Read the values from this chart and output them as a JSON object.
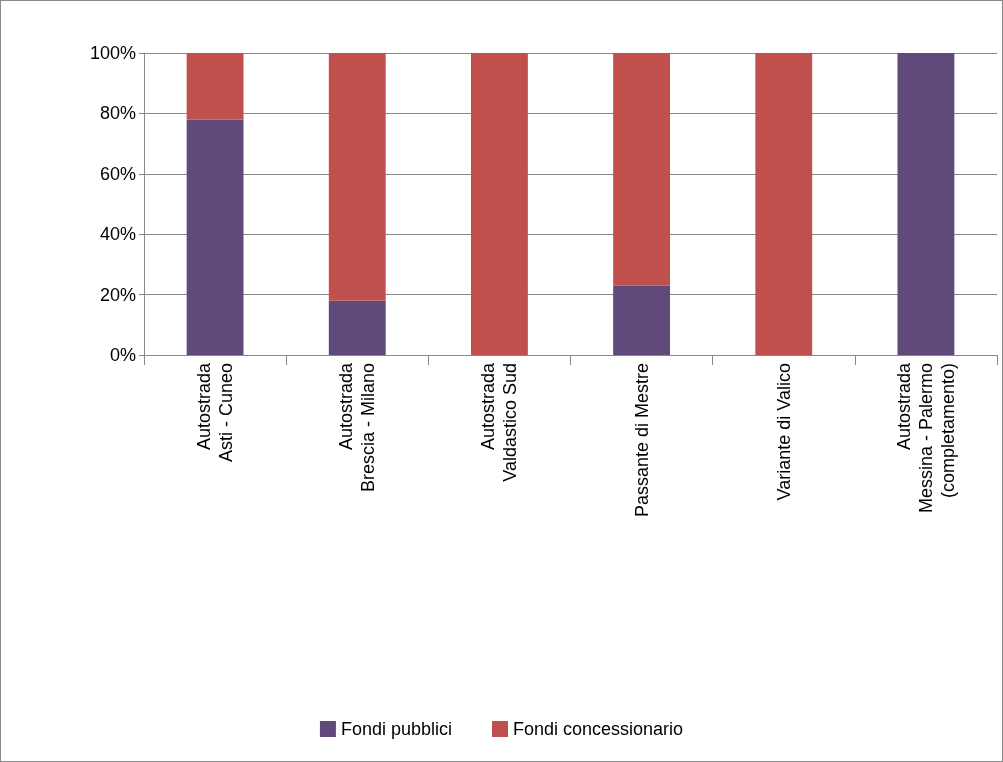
{
  "chart_data": {
    "type": "bar",
    "stacked": true,
    "categories": [
      "Autostrada\nAsti - Cuneo",
      "Autostrada\nBrescia - Milano",
      "Autostrada\nValdastico Sud",
      "Passante di Mestre",
      "Variante di Valico",
      "Autostrada\nMessina - Palermo\n(completamento)"
    ],
    "series": [
      {
        "name": "Fondi pubblici",
        "color": "#604a7b",
        "values": [
          78,
          18,
          0,
          23,
          0,
          100
        ]
      },
      {
        "name": "Fondi concessionario",
        "color": "#c0504d",
        "values": [
          22,
          82,
          100,
          77,
          100,
          0
        ]
      }
    ],
    "ylim": [
      0,
      100
    ],
    "yticks": [
      {
        "value": 0,
        "label": "0%"
      },
      {
        "value": 20,
        "label": "20%"
      },
      {
        "value": 40,
        "label": "40%"
      },
      {
        "value": 60,
        "label": "60%"
      },
      {
        "value": 80,
        "label": "80%"
      },
      {
        "value": 100,
        "label": "100%"
      }
    ],
    "grid": "y",
    "legend": "bottom"
  }
}
